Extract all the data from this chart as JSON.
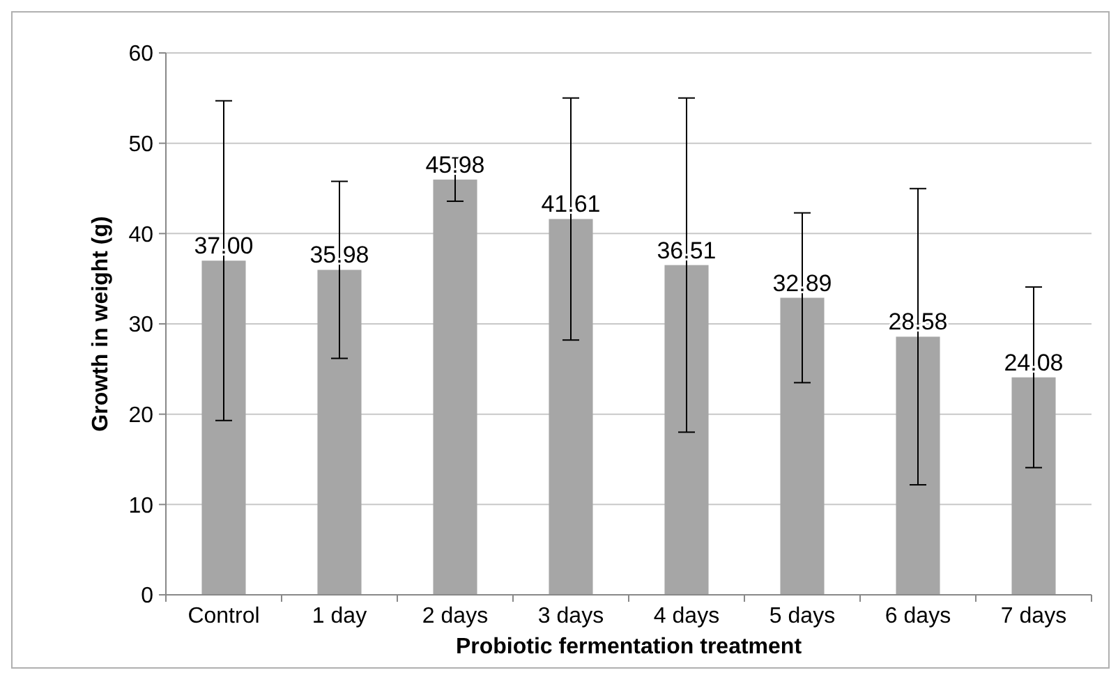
{
  "chart_data": {
    "type": "bar",
    "xlabel": "Probiotic fermentation treatment",
    "ylabel": "Growth in weight (g)",
    "categories": [
      "Control",
      "1 day",
      "2 days",
      "3 days",
      "4 days",
      "5 days",
      "6 days",
      "7 days"
    ],
    "values": [
      37.0,
      35.98,
      45.98,
      41.61,
      36.51,
      32.89,
      28.58,
      24.08
    ],
    "value_labels": [
      "37.00",
      "35.98",
      "45.98",
      "41.61",
      "36.51",
      "32.89",
      "28.58",
      "24.08"
    ],
    "errors": [
      17.7,
      9.8,
      2.4,
      13.4,
      18.5,
      9.4,
      16.4,
      10.0
    ],
    "color": "#a6a6a6",
    "ylim": [
      0,
      60
    ],
    "yticks": [
      0,
      10,
      20,
      30,
      40,
      50,
      60
    ],
    "grid": "y"
  }
}
